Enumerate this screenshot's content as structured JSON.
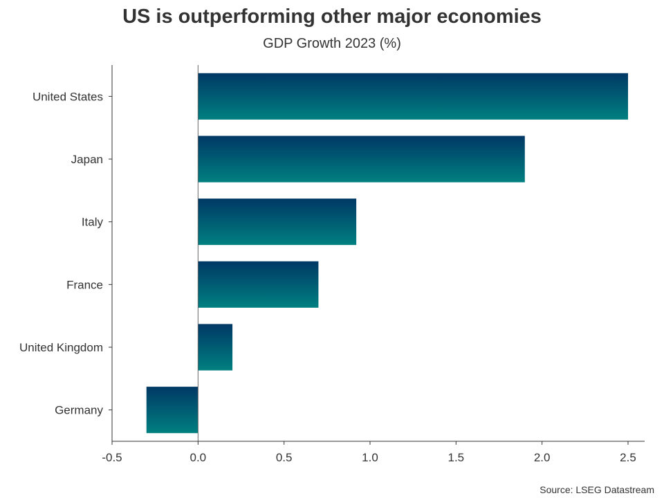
{
  "chart_data": {
    "type": "bar",
    "orientation": "horizontal",
    "title": "US is outperforming other major economies",
    "subtitle": "GDP Growth 2023 (%)",
    "categories": [
      "United States",
      "Japan",
      "Italy",
      "France",
      "United Kingdom",
      "Germany"
    ],
    "values": [
      2.5,
      1.9,
      0.92,
      0.7,
      0.2,
      -0.3
    ],
    "xlim": [
      -0.5,
      2.5
    ],
    "x_ticks": [
      "-0.5",
      "0.0",
      "0.5",
      "1.0",
      "1.5",
      "2.0",
      "2.5"
    ],
    "x_tick_values": [
      -0.5,
      0,
      0.5,
      1.0,
      1.5,
      2.0,
      2.5
    ],
    "xlabel": "",
    "ylabel": "",
    "grid": false,
    "bar_gradient": {
      "top": "#003865",
      "bottom": "#008080"
    },
    "source": "Source: LSEG Datastream"
  }
}
